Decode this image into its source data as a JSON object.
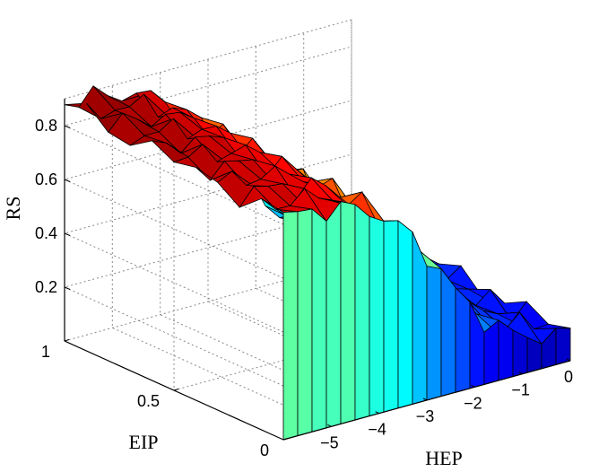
{
  "chart_data": {
    "type": "surface3d",
    "zlabel": "RS",
    "xlabel": "HEP",
    "ylabel": "EIP",
    "xlim": [
      -6,
      0
    ],
    "ylim": [
      0,
      1
    ],
    "zlim": [
      0,
      0.9
    ],
    "x_ticks": [
      "−5",
      "−4",
      "−3",
      "−2",
      "−1",
      "0"
    ],
    "y_ticks": [
      "0",
      "0.5",
      "1"
    ],
    "z_ticks": [
      "0.2",
      "0.4",
      "0.6",
      "0.8"
    ],
    "colormap": "jet",
    "grid": true,
    "n_x": 21,
    "n_y": 11,
    "rs_at_hep_min": 0.86,
    "rs_at_hep_max": 0.12,
    "eip_effect": 0.06
  }
}
